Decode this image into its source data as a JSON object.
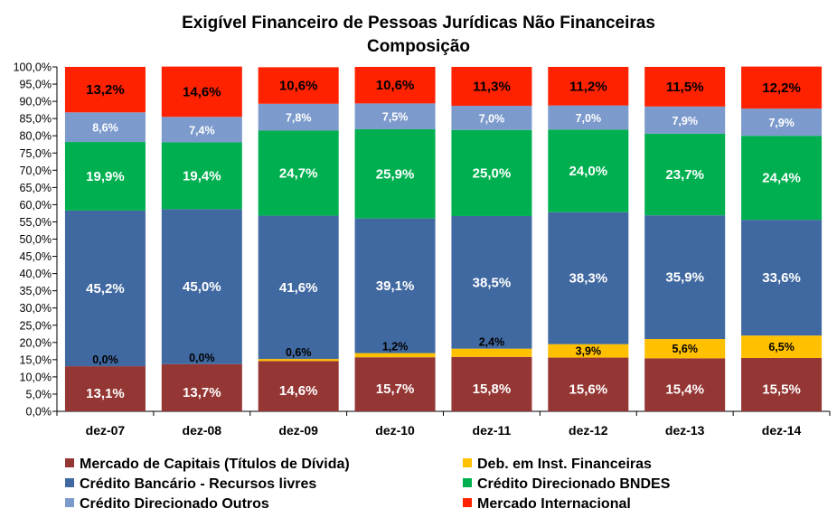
{
  "chart_data": {
    "type": "bar",
    "stacked": true,
    "title": "Exigível Financeiro de Pessoas Jurídicas Não Financeiras",
    "subtitle": "Composição",
    "xlabel": "",
    "ylabel": "",
    "ylim": [
      0,
      100
    ],
    "y_ticks": [
      "0,0%",
      "5,0%",
      "10,0%",
      "15,0%",
      "20,0%",
      "25,0%",
      "30,0%",
      "35,0%",
      "40,0%",
      "45,0%",
      "50,0%",
      "55,0%",
      "60,0%",
      "65,0%",
      "70,0%",
      "75,0%",
      "80,0%",
      "85,0%",
      "90,0%",
      "95,0%",
      "100,0%"
    ],
    "grid": false,
    "legend_position": "bottom",
    "categories": [
      "dez-07",
      "dez-08",
      "dez-09",
      "dez-10",
      "dez-11",
      "dez-12",
      "dez-13",
      "dez-14"
    ],
    "series": [
      {
        "name": "Mercado de Capitais (Títulos de Dívida)",
        "color": "#943634",
        "values": [
          13.1,
          13.7,
          14.6,
          15.7,
          15.8,
          15.6,
          15.4,
          15.5
        ],
        "labels": [
          "13,1%",
          "13,7%",
          "14,6%",
          "15,7%",
          "15,8%",
          "15,6%",
          "15,4%",
          "15,5%"
        ]
      },
      {
        "name": "Deb. em Inst. Financeiras",
        "color": "#FFC000",
        "values": [
          0.0,
          0.0,
          0.6,
          1.2,
          2.4,
          3.9,
          5.6,
          6.5
        ],
        "labels": [
          "0,0%",
          "0,0%",
          "0,6%",
          "1,2%",
          "2,4%",
          "3,9%",
          "5,6%",
          "6,5%"
        ]
      },
      {
        "name": "Crédito Bancário - Recursos livres",
        "color": "#4169A1",
        "values": [
          45.2,
          45.0,
          41.6,
          39.1,
          38.5,
          38.3,
          35.9,
          33.6
        ],
        "labels": [
          "45,2%",
          "45,0%",
          "41,6%",
          "39,1%",
          "38,5%",
          "38,3%",
          "35,9%",
          "33,6%"
        ]
      },
      {
        "name": "Crédito Direcionado  BNDES",
        "color": "#00B050",
        "values": [
          19.9,
          19.4,
          24.7,
          25.9,
          25.0,
          24.0,
          23.7,
          24.4
        ],
        "labels": [
          "19,9%",
          "19,4%",
          "24,7%",
          "25,9%",
          "25,0%",
          "24,0%",
          "23,7%",
          "24,4%"
        ]
      },
      {
        "name": "Crédito Direcionado Outros",
        "color": "#7C9ACC",
        "values": [
          8.6,
          7.4,
          7.8,
          7.5,
          7.0,
          7.0,
          7.9,
          7.9
        ],
        "labels": [
          "8,6%",
          "7,4%",
          "7,8%",
          "7,5%",
          "7,0%",
          "7,0%",
          "7,9%",
          "7,9%"
        ]
      },
      {
        "name": "Mercado Internacional",
        "color": "#FF2200",
        "values": [
          13.2,
          14.6,
          10.6,
          10.6,
          11.3,
          11.2,
          11.5,
          12.2
        ],
        "labels": [
          "13,2%",
          "14,6%",
          "10,6%",
          "10,6%",
          "11,3%",
          "11,2%",
          "11,5%",
          "12,2%"
        ]
      }
    ],
    "legend_order": [
      0,
      1,
      2,
      3,
      4,
      5
    ]
  }
}
